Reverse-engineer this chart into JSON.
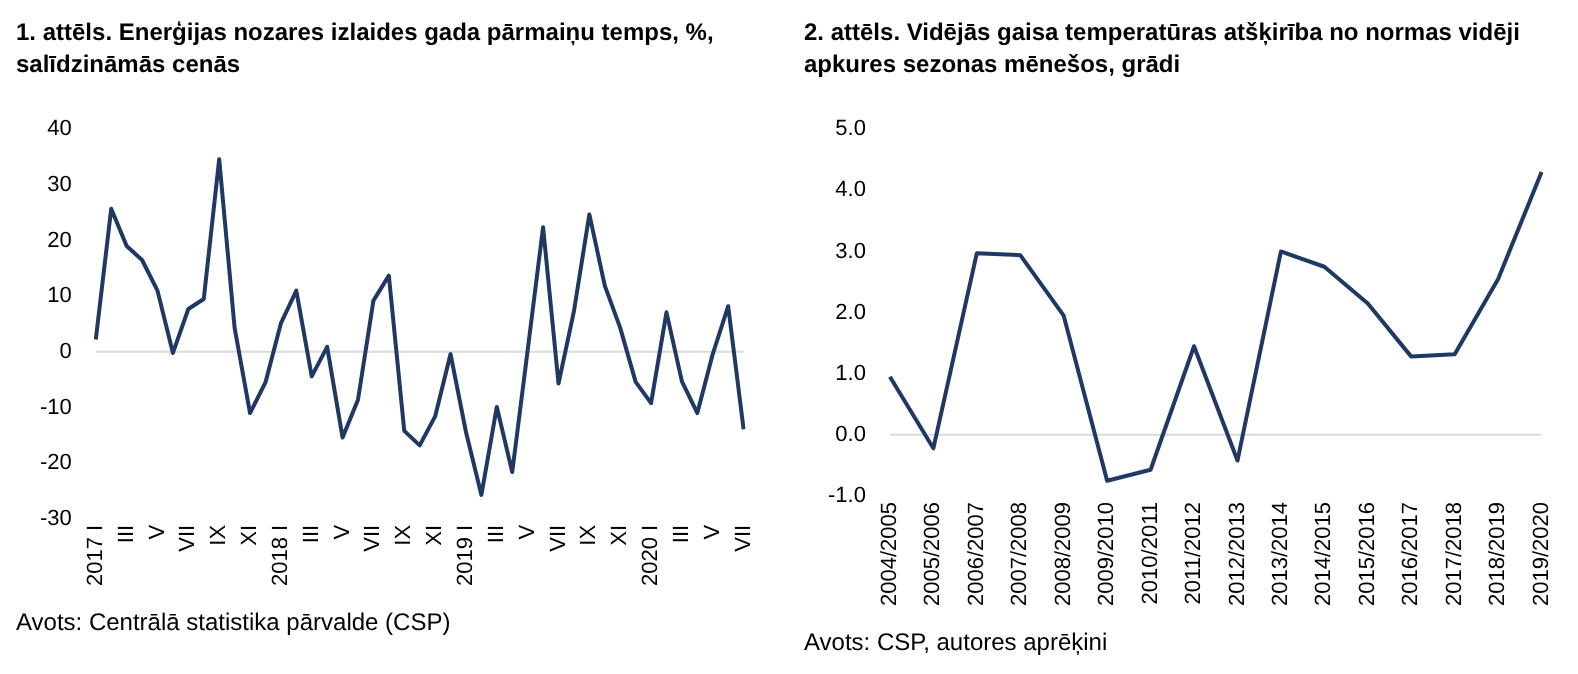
{
  "chart_data": [
    {
      "type": "line",
      "title": "1. attēls. Enerģijas nozares izlaides gada pārmaiņu temps, %, salīdzināmās cenās",
      "categories": [
        "2017 I",
        null,
        "III",
        null,
        "V",
        null,
        "VII",
        null,
        "IX",
        null,
        "XI",
        null,
        "2018 I",
        null,
        "III",
        null,
        "V",
        null,
        "VII",
        null,
        "IX",
        null,
        "XI",
        null,
        "2019 I",
        null,
        "III",
        null,
        "V",
        null,
        "VII",
        null,
        "IX",
        null,
        "XI",
        null,
        "2020 I",
        null,
        "III",
        null,
        "V",
        null,
        "VII"
      ],
      "series": [
        {
          "color": "#203864",
          "values": [
            2.2,
            25.7,
            19,
            16.5,
            11,
            -0.2,
            7.7,
            9.5,
            34.6,
            4.3,
            -11,
            -5.5,
            5.1,
            11,
            -4.4,
            0.9,
            -15.4,
            -8.6,
            9.2,
            13.7,
            -14.2,
            -16.8,
            -11.6,
            -0.4,
            -14.4,
            -25.7,
            -9.9,
            -21.6,
            0.3,
            22.4,
            -5.7,
            7.3,
            24.7,
            11.9,
            4.3,
            -5.4,
            -9.2,
            7.1,
            -5.3,
            -11,
            -0.4,
            8.2,
            -13.9
          ]
        }
      ],
      "ylim": [
        -30,
        40
      ],
      "yticks": [
        -30,
        -20,
        -10,
        0,
        10,
        20,
        30,
        40
      ],
      "grid": false,
      "legend": false,
      "marker": "none",
      "line_style": "solid",
      "ref_lines": [
        {
          "axis": "y",
          "value": 0,
          "color": "#d9d9d9"
        }
      ],
      "annotations": [
        "Avots: Centrālā statistika pārvalde (CSP)"
      ]
    },
    {
      "type": "line",
      "title": "2. attēls. Vidējās gaisa temperatūras atšķirība no normas vidēji apkures sezonas mēnešos, grādi",
      "categories": [
        "2004/2005",
        "2005/2006",
        "2006/2007",
        "2007/2008",
        "2008/2009",
        "2009/2010",
        "2010/2011",
        "2011/2012",
        "2012/2013",
        "2013/2014",
        "2014/2015",
        "2015/2016",
        "2016/2017",
        "2017/2018",
        "2018/2019",
        "2019/2020"
      ],
      "series": [
        {
          "color": "#203864",
          "values": [
            0.95,
            -0.22,
            2.97,
            2.94,
            1.95,
            -0.75,
            -0.57,
            1.45,
            -0.42,
            3.0,
            2.75,
            2.15,
            1.28,
            1.32,
            2.55,
            4.3
          ]
        }
      ],
      "ylim": [
        -1,
        5
      ],
      "yticks": [
        {
          "value": -1,
          "label": "-1.0"
        },
        {
          "value": 0,
          "label": "0.0"
        },
        {
          "value": 1,
          "label": "1.0"
        },
        {
          "value": 2,
          "label": "2.0"
        },
        {
          "value": 3,
          "label": "3.0"
        },
        {
          "value": 4,
          "label": "4.0"
        },
        {
          "value": 5,
          "label": "5.0"
        }
      ],
      "grid": false,
      "legend": false,
      "marker": "none",
      "line_style": "solid",
      "ref_lines": [
        {
          "axis": "y",
          "value": 0,
          "color": "#d9d9d9"
        }
      ],
      "annotations": [
        "Avots: CSP, autores aprēķini"
      ]
    }
  ]
}
